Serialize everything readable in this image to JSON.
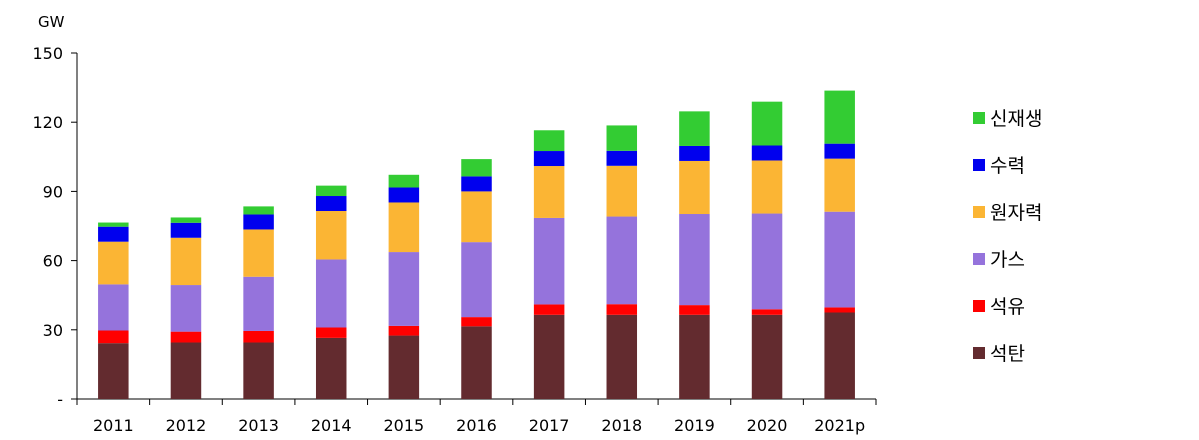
{
  "chart_data": {
    "type": "bar",
    "stacked": true,
    "unit_label": "GW",
    "categories": [
      "2011",
      "2012",
      "2013",
      "2014",
      "2015",
      "2016",
      "2017",
      "2018",
      "2019",
      "2020",
      "2021p"
    ],
    "ylim": [
      0,
      150
    ],
    "yticks": [
      {
        "value": 0,
        "label": "-"
      },
      {
        "value": 30,
        "label": "30"
      },
      {
        "value": 60,
        "label": "60"
      },
      {
        "value": 90,
        "label": "90"
      },
      {
        "value": 120,
        "label": "120"
      },
      {
        "value": 150,
        "label": "150"
      }
    ],
    "grid": false,
    "legend_position": "right",
    "series": [
      {
        "name": "석탄",
        "color": "#632b2f",
        "values": [
          24.2,
          24.5,
          24.5,
          26.5,
          27.5,
          31.5,
          36.5,
          36.5,
          36.5,
          36.5,
          37.5
        ]
      },
      {
        "name": "석유",
        "color": "#ff0000",
        "values": [
          5.5,
          4.7,
          5.0,
          4.5,
          4.2,
          4.0,
          4.5,
          4.6,
          4.2,
          2.4,
          2.2
        ]
      },
      {
        "name": "가스",
        "color": "#9573dc",
        "values": [
          20.0,
          20.2,
          23.5,
          29.5,
          32.0,
          32.5,
          37.5,
          38.0,
          39.5,
          41.5,
          41.5
        ]
      },
      {
        "name": "원자력",
        "color": "#fbb534",
        "values": [
          18.5,
          20.5,
          20.5,
          21.0,
          21.5,
          22.0,
          22.5,
          22.0,
          23.0,
          23.0,
          23.0
        ]
      },
      {
        "name": "수력",
        "color": "#0000ee",
        "values": [
          6.5,
          6.5,
          6.5,
          6.5,
          6.5,
          6.5,
          6.5,
          6.5,
          6.5,
          6.5,
          6.5
        ]
      },
      {
        "name": "신재생",
        "color": "#33cc33",
        "values": [
          1.8,
          2.3,
          3.5,
          4.5,
          5.5,
          7.5,
          9.0,
          11.0,
          15.0,
          19.0,
          23.0
        ]
      }
    ]
  }
}
